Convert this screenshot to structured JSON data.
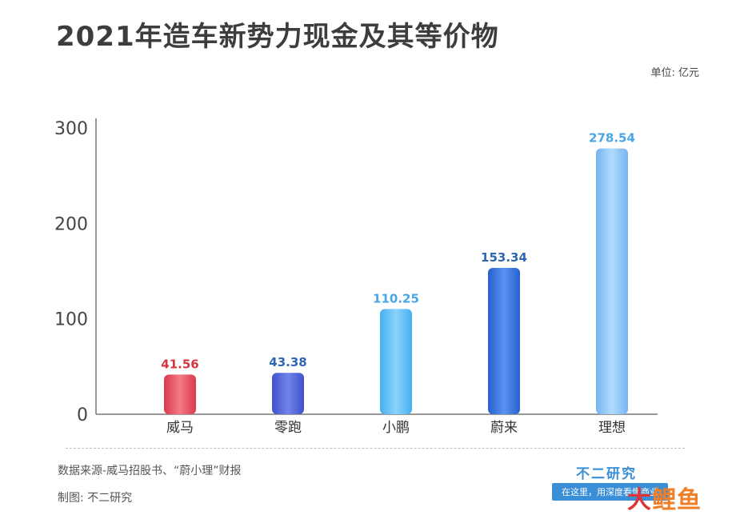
{
  "title": "2021年造车新势力现金及其等价物",
  "unit": "单位: 亿元",
  "source": "数据来源-威马招股书、“蔚小理”财报",
  "maker": "制图: 不二研究",
  "brand": {
    "name": "不二研究",
    "slogan": "在这里，用深度看懂商业",
    "badge_1": "大",
    "badge_2": "鲤鱼"
  },
  "colors": {
    "weima": "#e8475a",
    "lingpao": "#4a5fd6",
    "xiaopeng": "#5bbcf5",
    "weilai": "#2e6fdc",
    "lixiang": "#87c2f7",
    "label_red": "#d6353f",
    "label_blue": "#2f66b3",
    "label_light": "#4aa5e6"
  },
  "chart_data": {
    "type": "bar",
    "categories": [
      "威马",
      "零跑",
      "小鹏",
      "蔚来",
      "理想"
    ],
    "values": [
      41.56,
      43.38,
      110.25,
      153.34,
      278.54
    ],
    "value_labels": [
      "41.56",
      "43.38",
      "110.25",
      "153.34",
      "278.54"
    ],
    "yticks": [
      "0",
      "100",
      "200",
      "300"
    ],
    "ylim": [
      0,
      300
    ],
    "grid": false,
    "legend": "none"
  }
}
